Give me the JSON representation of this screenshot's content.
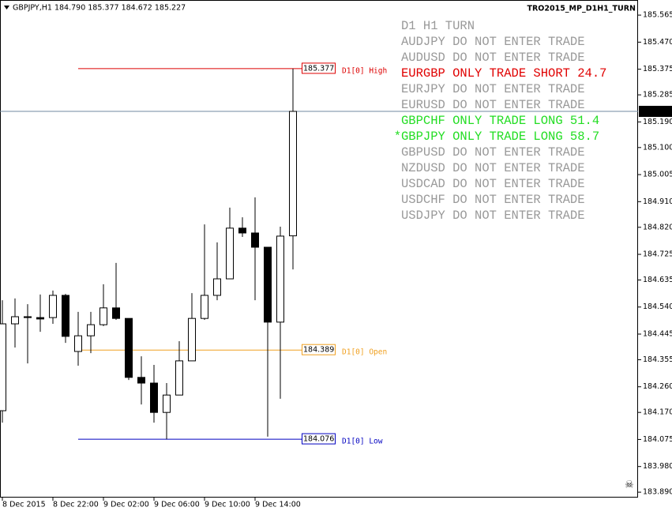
{
  "chart_data": {
    "type": "candlestick",
    "title": "GBPJPY,H1 184.790 185.377 184.672 185.227",
    "indicator": "TRO2015_MP_D1H1_TURN",
    "categories": [
      "8 Dec 2015",
      null,
      null,
      null,
      "8 Dec 22:00",
      null,
      null,
      null,
      "9 Dec 02:00",
      null,
      null,
      null,
      "9 Dec 06:00",
      null,
      null,
      null,
      "9 Dec 10:00",
      null,
      null,
      null,
      "9 Dec 14:00",
      null,
      null,
      null
    ],
    "open": [
      184.176,
      184.481,
      184.506,
      184.503,
      184.503,
      184.581,
      184.384,
      184.439,
      184.478,
      184.537,
      184.5,
      184.293,
      184.273,
      184.17,
      184.231,
      184.351,
      184.5,
      184.581,
      184.639,
      184.817,
      184.8,
      184.75,
      184.487,
      184.79
    ],
    "high": [
      184.564,
      184.57,
      184.55,
      184.584,
      184.598,
      184.586,
      184.523,
      184.523,
      184.62,
      184.695,
      184.5,
      184.367,
      184.337,
      184.273,
      184.42,
      184.589,
      184.83,
      184.767,
      184.889,
      184.855,
      184.925,
      184.75,
      184.822,
      185.377
    ],
    "low": [
      184.134,
      184.398,
      184.342,
      184.453,
      184.481,
      184.414,
      184.334,
      184.378,
      184.473,
      184.495,
      184.284,
      184.198,
      184.134,
      184.076,
      184.231,
      184.351,
      184.495,
      184.564,
      184.639,
      184.786,
      184.564,
      184.085,
      184.218,
      184.672
    ],
    "close": [
      184.481,
      184.506,
      184.503,
      184.498,
      184.581,
      184.437,
      184.439,
      184.478,
      184.537,
      184.5,
      184.293,
      184.273,
      184.17,
      184.231,
      184.351,
      184.5,
      184.581,
      184.639,
      184.817,
      184.8,
      184.75,
      184.487,
      184.789,
      185.227
    ],
    "up_color": "#ffffff",
    "down_color": "#000000",
    "ylim": [
      183.871,
      185.618
    ],
    "yticks": [
      {
        "value": 185.565,
        "label": "185.565"
      },
      {
        "value": 185.47,
        "label": "185.470"
      },
      {
        "value": 185.375,
        "label": "185.375"
      },
      {
        "value": 185.285,
        "label": "185.285"
      },
      {
        "value": 185.19,
        "label": "185.190"
      },
      {
        "value": 185.1,
        "label": "185.100"
      },
      {
        "value": 185.005,
        "label": "185.005"
      },
      {
        "value": 184.91,
        "label": "184.910"
      },
      {
        "value": 184.82,
        "label": "184.820"
      },
      {
        "value": 184.725,
        "label": "184.725"
      },
      {
        "value": 184.635,
        "label": "184.635"
      },
      {
        "value": 184.54,
        "label": "184.540"
      },
      {
        "value": 184.445,
        "label": "184.445"
      },
      {
        "value": 184.355,
        "label": "184.355"
      },
      {
        "value": 184.26,
        "label": "184.260"
      },
      {
        "value": 184.17,
        "label": "184.170"
      },
      {
        "value": 184.075,
        "label": "184.075"
      },
      {
        "value": 183.98,
        "label": "183.980"
      },
      {
        "value": 183.89,
        "label": "183.890"
      }
    ],
    "current_price": {
      "value": 185.227,
      "color": "#7088a0"
    },
    "levels": [
      {
        "name": "D1[0] High",
        "value": 185.377,
        "color": "#dd0000"
      },
      {
        "name": "D1[0] Open",
        "value": 184.389,
        "color": "#f0a020"
      },
      {
        "name": "D1[0] Low",
        "value": 184.076,
        "color": "#0000c0"
      }
    ],
    "panel": [
      {
        "text": "D1 H1 TURN",
        "color": "#999999"
      },
      {
        "text": "AUDJPY DO NOT ENTER TRADE",
        "color": "#999999"
      },
      {
        "text": "AUDUSD DO NOT ENTER TRADE",
        "color": "#999999"
      },
      {
        "text": "EURGBP ONLY TRADE SHORT 24.7",
        "color": "#e00000"
      },
      {
        "text": "EURJPY DO NOT ENTER TRADE",
        "color": "#999999"
      },
      {
        "text": "EURUSD DO NOT ENTER TRADE",
        "color": "#999999"
      },
      {
        "text": "GBPCHF ONLY TRADE LONG 51.4",
        "color": "#22dd22"
      },
      {
        "text": "*GBPJPY ONLY TRADE LONG 58.7",
        "color": "#22dd22"
      },
      {
        "text": "GBPUSD DO NOT ENTER TRADE",
        "color": "#999999"
      },
      {
        "text": "NZDUSD DO NOT ENTER TRADE",
        "color": "#999999"
      },
      {
        "text": "USDCAD DO NOT ENTER TRADE",
        "color": "#999999"
      },
      {
        "text": "USDCHF DO NOT ENTER TRADE",
        "color": "#999999"
      },
      {
        "text": "USDJPY DO NOT ENTER TRADE",
        "color": "#999999"
      }
    ]
  }
}
